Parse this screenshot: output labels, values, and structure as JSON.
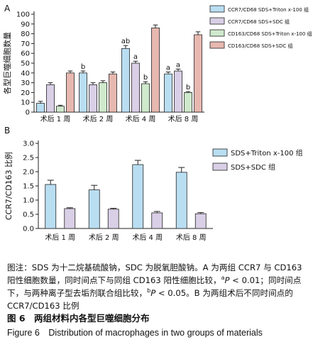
{
  "chart_data": [
    {
      "type": "bar",
      "panel": "A",
      "categories": [
        "术后 1 周",
        "术后 2 周",
        "术后 4 周",
        "术后 8 周"
      ],
      "ylabel": "各型巨噬细胞数量",
      "ylim": [
        0,
        100
      ],
      "yticks": [
        0,
        10,
        20,
        30,
        40,
        50,
        60,
        70,
        80,
        90,
        100
      ],
      "series": [
        {
          "name": "CCR7/CD68 SDS+Triton x-100 组",
          "color": "#b9def2",
          "values": [
            9,
            40,
            65,
            39
          ],
          "errors": [
            2,
            2,
            3,
            2
          ],
          "labels": [
            "",
            "b",
            "ab",
            "a"
          ]
        },
        {
          "name": "CCR7/CD68 SDS+SDC 组",
          "color": "#d9cfe6",
          "values": [
            28,
            28,
            50,
            42
          ],
          "errors": [
            2,
            2,
            2,
            2
          ],
          "labels": [
            "",
            "",
            "a",
            "a"
          ]
        },
        {
          "name": "CD163/CD68 SDS+Triton x-100 组",
          "color": "#cfe9cc",
          "values": [
            6,
            30,
            29,
            20
          ],
          "errors": [
            1,
            2,
            2,
            1
          ],
          "labels": [
            "",
            "",
            "b",
            "b"
          ]
        },
        {
          "name": "CD163/CD68 SDS+SDC 组",
          "color": "#e7b8b0",
          "values": [
            40,
            39,
            86,
            79
          ],
          "errors": [
            2,
            2,
            3,
            3
          ],
          "labels": [
            "",
            "",
            "",
            ""
          ]
        }
      ]
    },
    {
      "type": "bar",
      "panel": "B",
      "categories": [
        "术后 1 周",
        "术后 2 周",
        "术后 4 周",
        "术后 8 周"
      ],
      "ylabel": "CCR7/CD163 比例",
      "ylim": [
        0,
        3.0
      ],
      "yticks": [
        "0.0",
        "0.5",
        "1.0",
        "1.5",
        "2.0",
        "2.5",
        "3.0"
      ],
      "series": [
        {
          "name": "SDS+Triton x-100 组",
          "color": "#b9def2",
          "values": [
            1.55,
            1.36,
            2.25,
            1.98
          ],
          "errors": [
            0.15,
            0.16,
            0.15,
            0.17
          ]
        },
        {
          "name": "SDS+SDC 组",
          "color": "#d9cfe6",
          "values": [
            0.7,
            0.68,
            0.55,
            0.52
          ],
          "errors": [
            0.03,
            0.03,
            0.05,
            0.04
          ]
        }
      ]
    }
  ],
  "caption": {
    "note_p1": "图注：SDS 为十二烷基硫酸钠，SDC 为脱氧胆酸钠。A 为两组 CCR7 与 CD163 阳性细胞数量，同时间点下与同组 CD163 阳性细胞比较，",
    "sup_a": "a",
    "p_label_1": "P",
    "note_p2": " < 0.01；同时间点下，与两种离子型去垢剂联合组比较，",
    "sup_b": "b",
    "p_label_2": "P",
    "note_p3": " < 0.05。B 为两组术后不同时间点的 CCR7/CD163 比例",
    "figure_title_cn": "图 6　两组材料内各型巨噬细胞分布",
    "figure_title_en": "Figure 6　Distribution of macrophages in two groups of materials"
  },
  "panel_labels": {
    "a": "A",
    "b": "B"
  }
}
